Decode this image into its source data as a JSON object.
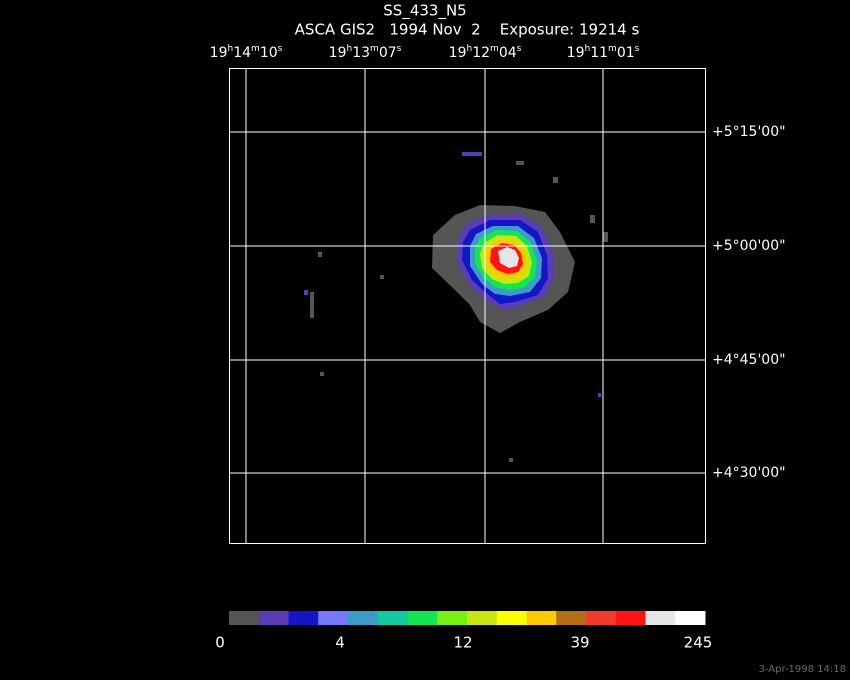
{
  "header": {
    "title": "SS_433_N5",
    "subtitle": "ASCA GIS2   1994 Nov  2    Exposure: 19214 s"
  },
  "ra_labels": [
    [
      "19",
      "h",
      "14",
      "m",
      "10",
      "s"
    ],
    [
      "19",
      "h",
      "13",
      "m",
      "07",
      "s"
    ],
    [
      "19",
      "h",
      "12",
      "m",
      "04",
      "s"
    ],
    [
      "19",
      "h",
      "11",
      "m",
      "01",
      "s"
    ]
  ],
  "dec_labels": [
    "+5°15'00\"",
    "+5°00'00\"",
    "+4°45'00\"",
    "+4°30'00\""
  ],
  "colorbar": {
    "colors": [
      "#555555",
      "#5a3cb4",
      "#1414c8",
      "#7878ff",
      "#3c9bc8",
      "#14c8a0",
      "#14e650",
      "#78f014",
      "#c8e614",
      "#ffff00",
      "#ffc800",
      "#b46e14",
      "#f03c28",
      "#ff1414",
      "#e6e6e6",
      "#ffffff"
    ],
    "labels": [
      "0",
      "4",
      "12",
      "39",
      "245"
    ]
  },
  "timestamp": "3-Apr-1998 14:18"
}
